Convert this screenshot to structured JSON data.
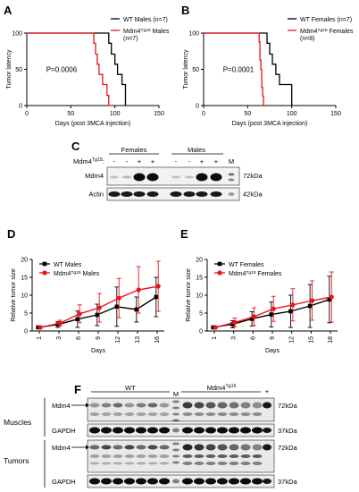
{
  "panels": {
    "A": {
      "label": "A"
    },
    "B": {
      "label": "B"
    },
    "C": {
      "label": "C"
    },
    "D": {
      "label": "D"
    },
    "E": {
      "label": "E"
    },
    "F": {
      "label": "F"
    }
  },
  "chart_data": [
    {
      "id": "A",
      "type": "line",
      "step": true,
      "ylabel": "Tumor latency",
      "xlabel": "Days (post 3MCA injection)",
      "xlim": [
        0,
        150
      ],
      "ylim": [
        0,
        100
      ],
      "xticks": [
        "0",
        "50",
        "100",
        "150"
      ],
      "yticks": [
        "0",
        "50",
        "100"
      ],
      "annotation": "P=0.0006",
      "legend_position": "top-right",
      "series": [
        {
          "name": "WT Males (n=7)",
          "color": "#000000",
          "x": [
            0,
            93,
            93,
            96,
            96,
            100,
            100,
            103,
            103,
            108,
            108,
            112,
            112
          ],
          "y": [
            100,
            100,
            86,
            86,
            71,
            71,
            57,
            57,
            43,
            43,
            29,
            29,
            0
          ]
        },
        {
          "name": "Mdm4Tg15 Males (n=7)",
          "color": "#e8151b",
          "x": [
            0,
            76,
            76,
            78,
            78,
            80,
            80,
            82,
            82,
            86,
            86,
            91,
            91,
            93,
            93,
            96
          ],
          "y": [
            100,
            100,
            86,
            86,
            71,
            71,
            57,
            57,
            43,
            43,
            29,
            29,
            14,
            14,
            0,
            0
          ]
        }
      ]
    },
    {
      "id": "B",
      "type": "line",
      "step": true,
      "ylabel": "Tumor latency",
      "xlabel": "Days (post 3MCA injection)",
      "xlim": [
        0,
        150
      ],
      "ylim": [
        0,
        100
      ],
      "xticks": [
        "0",
        "50",
        "100",
        "150"
      ],
      "yticks": [
        "0",
        "50",
        "100"
      ],
      "annotation": "P=0.0001",
      "legend_position": "top-right",
      "series": [
        {
          "name": "WT Females (n=7)",
          "color": "#000000",
          "x": [
            0,
            72,
            72,
            75,
            75,
            78,
            78,
            82,
            82,
            86,
            86,
            100,
            100
          ],
          "y": [
            100,
            100,
            86,
            86,
            71,
            71,
            57,
            57,
            43,
            43,
            29,
            29,
            0
          ]
        },
        {
          "name": "Mdm4Tg15 Females (n=8)",
          "color": "#e8151b",
          "x": [
            0,
            63,
            63,
            64,
            64,
            65,
            65,
            66,
            66,
            67,
            67,
            68,
            68
          ],
          "y": [
            100,
            100,
            88,
            88,
            63,
            63,
            50,
            50,
            25,
            25,
            13,
            13,
            0
          ]
        }
      ]
    },
    {
      "id": "D",
      "type": "line",
      "ylabel": "Relative tumor size",
      "xlabel": "Days",
      "ylim": [
        0,
        20
      ],
      "yticks": [
        "0",
        "5",
        "10",
        "15",
        "20"
      ],
      "categories": [
        "1",
        "3",
        "6",
        "9",
        "12",
        "13",
        "16"
      ],
      "legend_position": "top-left",
      "series": [
        {
          "name": "WT Males",
          "color": "#000000",
          "values": [
            1,
            1.8,
            3.3,
            4.5,
            6.8,
            6,
            9.5
          ],
          "errors": [
            0.2,
            0.8,
            2.3,
            3,
            5.5,
            3.5,
            5.5
          ]
        },
        {
          "name": "Mdm4Tg15 Males",
          "color": "#e8151b",
          "values": [
            1,
            2.2,
            4.8,
            6.5,
            9.2,
            11.5,
            12.5
          ],
          "errors": [
            0.2,
            0.8,
            2.5,
            4,
            5.5,
            6.5,
            7
          ]
        }
      ]
    },
    {
      "id": "E",
      "type": "line",
      "ylabel": "Relative tumor size",
      "xlabel": "Days",
      "ylim": [
        0,
        20
      ],
      "yticks": [
        "0",
        "5",
        "10",
        "15",
        "20"
      ],
      "categories": [
        "1",
        "3",
        "6",
        "9",
        "12",
        "15",
        "18"
      ],
      "legend_position": "top-left",
      "series": [
        {
          "name": "WT Females",
          "color": "#000000",
          "values": [
            1,
            1.9,
            3.4,
            4.6,
            5.5,
            7,
            8.8
          ],
          "errors": [
            0.2,
            1,
            2,
            3.5,
            4.5,
            6,
            6.5
          ]
        },
        {
          "name": "Mdm4Tg15 Females",
          "color": "#e8151b",
          "values": [
            1,
            2.4,
            4,
            6.2,
            7.3,
            8.5,
            9.5
          ],
          "errors": [
            0.2,
            1.2,
            2.5,
            3.5,
            4.5,
            5.5,
            7
          ]
        }
      ]
    }
  ],
  "blots": {
    "C": {
      "group_labels": [
        "Females",
        "Males"
      ],
      "row_label_prefix": "Mdm4",
      "row_label_sup": "Tg15",
      "row_label_suffix": ":",
      "lane_marks": [
        "-",
        "-",
        "+",
        "+",
        "-",
        "-",
        "+",
        "+",
        "M"
      ],
      "rows": [
        {
          "label": "Mdm4",
          "size": "72kDa"
        },
        {
          "label": "Actin",
          "size": "42kDa"
        }
      ]
    },
    "F": {
      "group_wt": "WT",
      "group_m": "M",
      "group_tg_prefix": "Mdm4",
      "group_tg_sup": "Tg15",
      "group_plus": "+",
      "sections": [
        {
          "label": "Muscles",
          "rows": [
            {
              "label": "Mdm4",
              "size": "72kDa"
            },
            {
              "label": "GAPDH",
              "size": "37kDa"
            }
          ]
        },
        {
          "label": "Tumors",
          "rows": [
            {
              "label": "Mdm4",
              "size": "72kDa"
            },
            {
              "label": "GAPDH",
              "size": "37kDa"
            }
          ]
        }
      ]
    }
  }
}
